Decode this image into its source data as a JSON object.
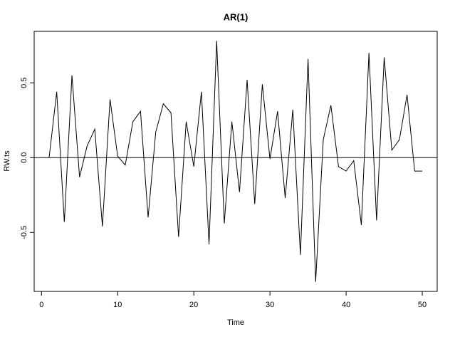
{
  "chart_data": {
    "type": "line",
    "title": "AR(1)",
    "xlabel": "Time",
    "ylabel": "RW.ts",
    "x": [
      1,
      2,
      3,
      4,
      5,
      6,
      7,
      8,
      9,
      10,
      11,
      12,
      13,
      14,
      15,
      16,
      17,
      18,
      19,
      20,
      21,
      22,
      23,
      24,
      25,
      26,
      27,
      28,
      29,
      30,
      31,
      32,
      33,
      34,
      35,
      36,
      37,
      38,
      39,
      40,
      41,
      42,
      43,
      44,
      45,
      46,
      47,
      48,
      49,
      50
    ],
    "series": [
      {
        "name": "RW.ts",
        "color": "#000000",
        "values": [
          0.0,
          0.44,
          -0.43,
          0.55,
          -0.13,
          0.08,
          0.19,
          -0.46,
          0.39,
          0.01,
          -0.05,
          0.24,
          0.31,
          -0.4,
          0.17,
          0.36,
          0.3,
          -0.53,
          0.24,
          -0.06,
          0.44,
          -0.58,
          0.78,
          -0.44,
          0.24,
          -0.23,
          0.52,
          -0.31,
          0.49,
          -0.01,
          0.31,
          -0.27,
          0.32,
          -0.65,
          0.66,
          -0.83,
          0.12,
          0.35,
          -0.06,
          -0.09,
          -0.02,
          -0.45,
          0.7,
          -0.42,
          0.67,
          0.05,
          0.12,
          0.42,
          -0.09,
          -0.09
        ]
      }
    ],
    "xlim": [
      -0.96,
      51.96
    ],
    "xticks": [
      0,
      10,
      20,
      30,
      40,
      50
    ],
    "ylim": [
      -0.894,
      0.844
    ],
    "yticks": [
      -0.5,
      {
        "value": 0,
        "label": "0.0"
      },
      0.5
    ],
    "hline": 0
  }
}
